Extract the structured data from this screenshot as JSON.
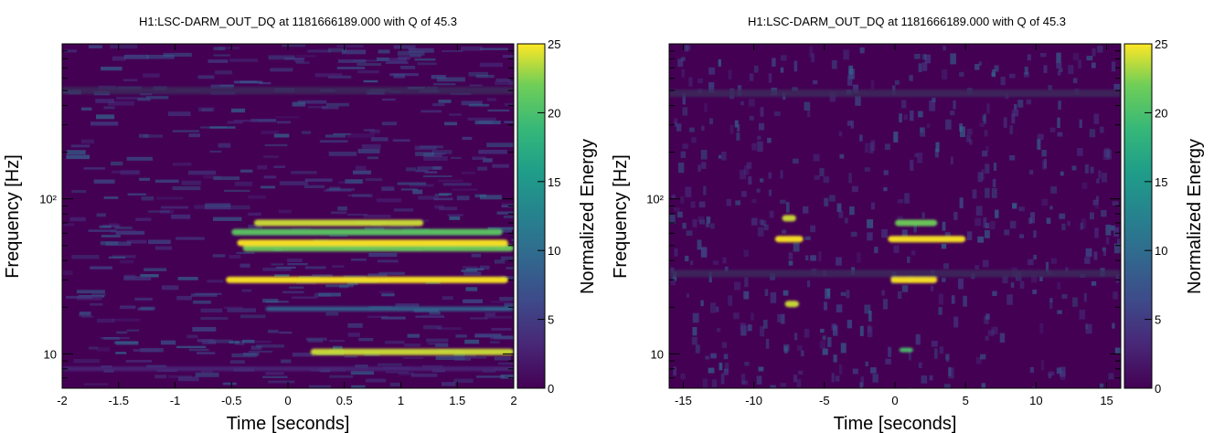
{
  "chart_data": [
    {
      "type": "heatmap",
      "title": "H1:LSC-DARM_OUT_DQ at 1181666189.000 with Q of 45.3",
      "xlabel": "Time [seconds]",
      "ylabel": "Frequency [Hz]",
      "colorbar_label": "Normalized Energy",
      "xlim": [
        -2,
        2
      ],
      "x_ticks": [
        "-2",
        "-1.5",
        "-1",
        "-0.5",
        "0",
        "0.5",
        "1",
        "1.5",
        "2"
      ],
      "x_tick_values": [
        -2,
        -1.5,
        -1,
        -0.5,
        0,
        0.5,
        1,
        1.5,
        2
      ],
      "ylim": [
        6,
        1000
      ],
      "yscale": "log",
      "y_ticks": [
        "10",
        "10²"
      ],
      "y_tick_values": [
        10,
        100
      ],
      "colorbar_range": [
        0,
        25
      ],
      "colorbar_ticks": [
        "0",
        "5",
        "10",
        "15",
        "20",
        "25"
      ],
      "colorbar_tick_values": [
        0,
        5,
        10,
        15,
        20,
        25
      ],
      "colormap": "viridis",
      "features": [
        {
          "name": "noise-band-low",
          "t": [
            -2,
            2
          ],
          "f": 8,
          "energy": 3
        },
        {
          "name": "line-10hz",
          "t": [
            0.2,
            2
          ],
          "f": 10.3,
          "energy": 24
        },
        {
          "name": "arch-28hz",
          "t": [
            -0.55,
            1.95
          ],
          "f": 30,
          "energy": 25
        },
        {
          "name": "line-20hz",
          "t": [
            -0.2,
            2
          ],
          "f": 19.5,
          "energy": 9
        },
        {
          "name": "line-48hz",
          "t": [
            -0.4,
            2
          ],
          "f": 48,
          "energy": 22
        },
        {
          "name": "line-52hz",
          "t": [
            -0.45,
            1.95
          ],
          "f": 52,
          "energy": 25
        },
        {
          "name": "line-60hz",
          "t": [
            -0.5,
            1.9
          ],
          "f": 61,
          "energy": 21
        },
        {
          "name": "line-70hz",
          "t": [
            -0.3,
            1.2
          ],
          "f": 70,
          "energy": 24
        },
        {
          "name": "grey-band-500hz",
          "t": [
            -2,
            2
          ],
          "f": 500,
          "energy": 1
        }
      ]
    },
    {
      "type": "heatmap",
      "title": "H1:LSC-DARM_OUT_DQ at 1181666189.000 with Q of 45.3",
      "xlabel": "Time [seconds]",
      "ylabel": "Frequency [Hz]",
      "colorbar_label": "Normalized Energy",
      "xlim": [
        -16,
        16
      ],
      "x_ticks": [
        "-15",
        "-10",
        "-5",
        "0",
        "5",
        "10",
        "15"
      ],
      "x_tick_values": [
        -15,
        -10,
        -5,
        0,
        5,
        10,
        15
      ],
      "ylim": [
        6,
        1000
      ],
      "yscale": "log",
      "y_ticks": [
        "10",
        "10²"
      ],
      "y_tick_values": [
        10,
        100
      ],
      "colorbar_range": [
        0,
        25
      ],
      "colorbar_ticks": [
        "0",
        "5",
        "10",
        "15",
        "20",
        "25"
      ],
      "colorbar_tick_values": [
        0,
        5,
        10,
        15,
        20,
        25
      ],
      "colormap": "viridis",
      "features": [
        {
          "name": "scatter-arch-1",
          "t": [
            -8.5,
            -6.5
          ],
          "f": 55,
          "energy": 25
        },
        {
          "name": "scatter-arch-1b",
          "t": [
            -8,
            -7
          ],
          "f": 75,
          "energy": 24
        },
        {
          "name": "scatter-arch-2",
          "t": [
            -0.5,
            5
          ],
          "f": 55,
          "energy": 25
        },
        {
          "name": "scatter-arch-2b",
          "t": [
            0,
            3
          ],
          "f": 70,
          "energy": 22
        },
        {
          "name": "blob-28hz",
          "t": [
            -0.3,
            3
          ],
          "f": 30,
          "energy": 25
        },
        {
          "name": "blob-20hz",
          "t": [
            -7.8,
            -6.8
          ],
          "f": 21,
          "energy": 24
        },
        {
          "name": "blob-10hz",
          "t": [
            0.3,
            1.3
          ],
          "f": 10.6,
          "energy": 20
        },
        {
          "name": "grey-band-500hz",
          "t": [
            -16,
            16
          ],
          "f": 480,
          "energy": 1
        },
        {
          "name": "grey-band-32hz",
          "t": [
            -16,
            16
          ],
          "f": 33,
          "energy": 1
        }
      ]
    }
  ]
}
